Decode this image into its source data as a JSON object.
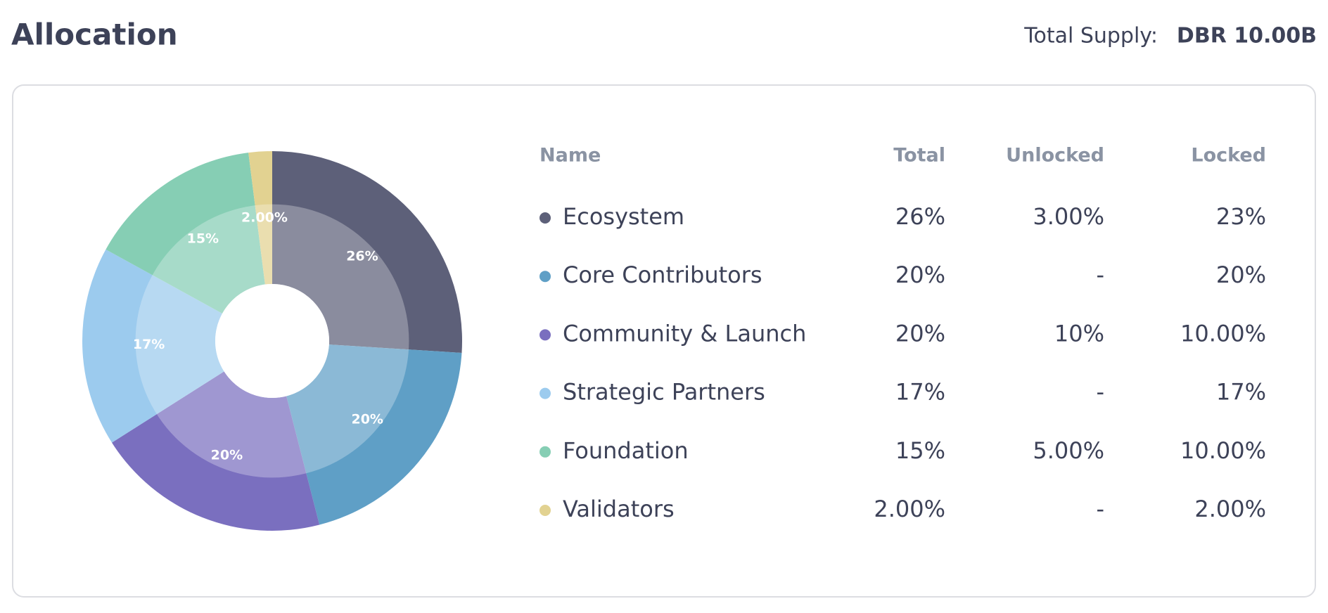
{
  "header": {
    "title": "Allocation",
    "supply_label": "Total Supply:",
    "supply_value": "DBR 10.00B"
  },
  "chart_data": {
    "type": "pie",
    "categories": [
      "Ecosystem",
      "Core Contributors",
      "Community & Launch",
      "Strategic Partners",
      "Foundation",
      "Validators"
    ],
    "values": [
      26,
      20,
      20,
      17,
      15,
      2
    ],
    "value_labels": [
      "26%",
      "20%",
      "20%",
      "17%",
      "15%",
      "2.00%"
    ],
    "colors": [
      "#5d6079",
      "#5f9fc6",
      "#7a6fbf",
      "#9ccbee",
      "#86ceb4",
      "#e2d291"
    ]
  },
  "table": {
    "columns": [
      "Name",
      "Total",
      "Unlocked",
      "Locked"
    ],
    "rows": [
      [
        "3.00%",
        "23%"
      ],
      [
        "-",
        "20%"
      ],
      [
        "10%",
        "10.00%"
      ],
      [
        "-",
        "17%"
      ],
      [
        "5.00%",
        "10.00%"
      ],
      [
        "-",
        "2.00%"
      ]
    ]
  }
}
